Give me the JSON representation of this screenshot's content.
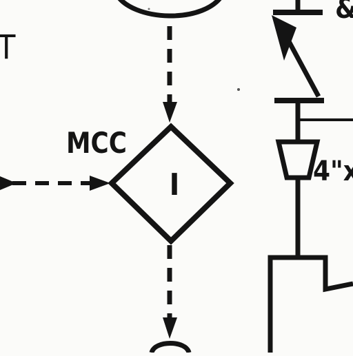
{
  "labels": {
    "left_letter": "T",
    "mcc_label": "MCC",
    "diamond_symbol": "I",
    "reducer_label": "4\"x",
    "top_right_partial": "&"
  },
  "colors": {
    "ink": "#141414",
    "background": "#fbfbf9"
  },
  "icons": {
    "arrow": "arrowhead-triangle",
    "shape": "diamond-interlock"
  }
}
